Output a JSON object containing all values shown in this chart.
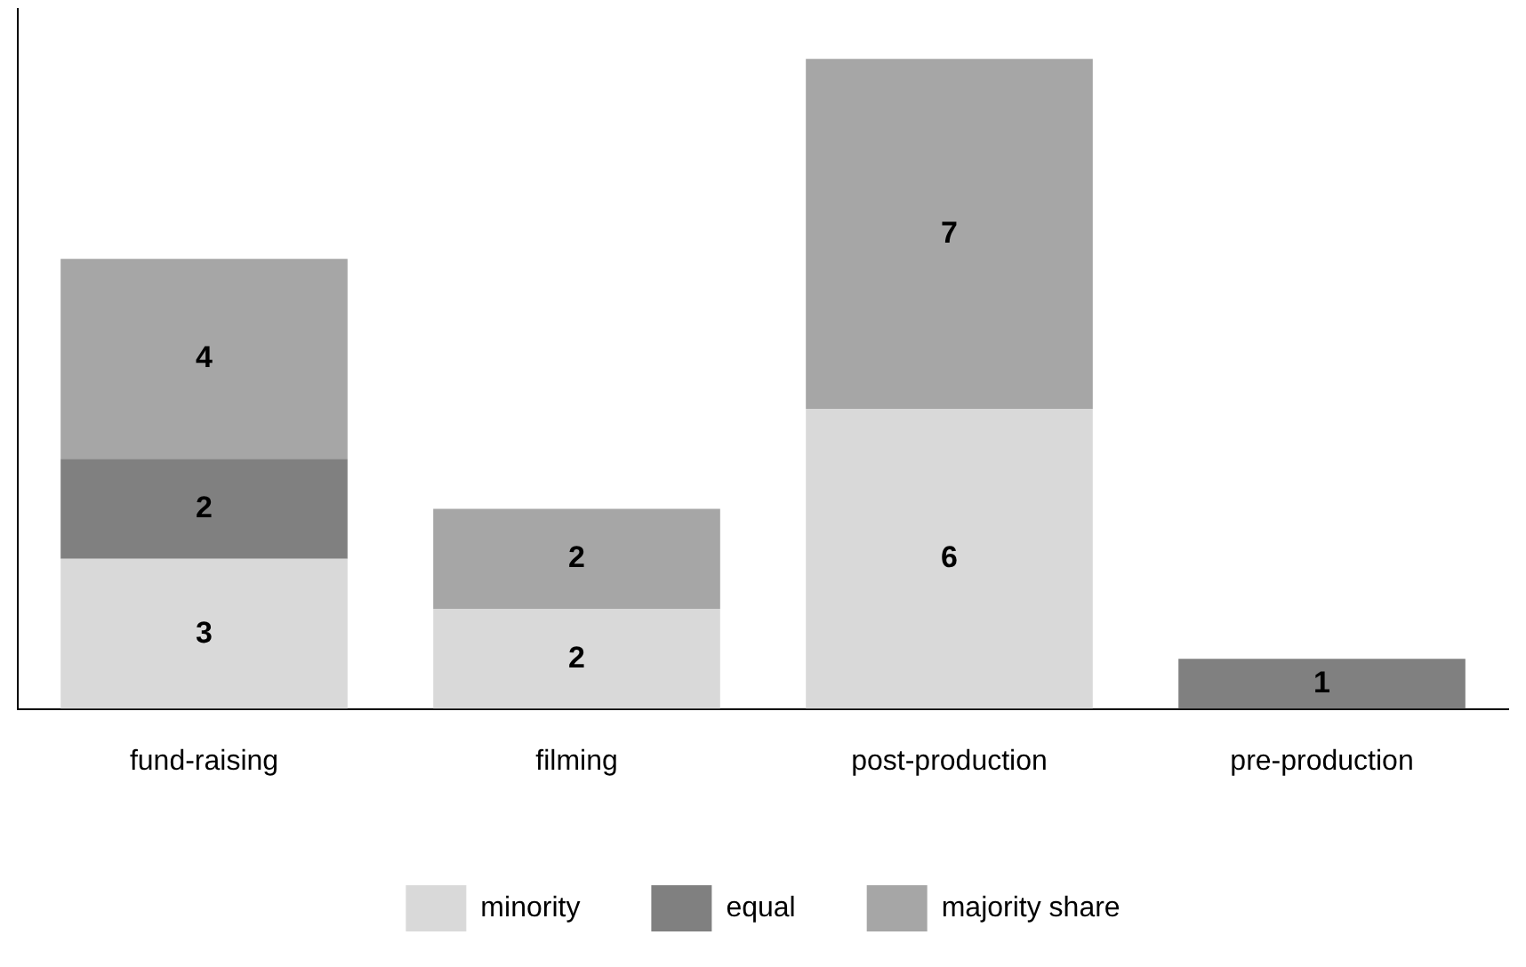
{
  "chart_data": {
    "type": "bar",
    "stacked": true,
    "categories": [
      "fund-raising",
      "filming",
      "post-production",
      "pre-production"
    ],
    "series": [
      {
        "name": "minority",
        "color": "#d9d9d9",
        "values": [
          3,
          2,
          6,
          null
        ]
      },
      {
        "name": "equal",
        "color": "#808080",
        "values": [
          2,
          null,
          null,
          1
        ]
      },
      {
        "name": "majority share",
        "color": "#a6a6a6",
        "values": [
          4,
          2,
          7,
          null
        ]
      }
    ],
    "data_labels": true,
    "grid": false,
    "legend": "bottom",
    "tick_labels": "x"
  }
}
